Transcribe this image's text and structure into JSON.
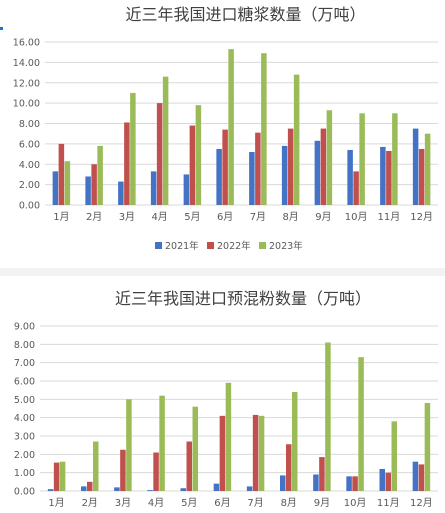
{
  "colors": {
    "s2021": "#4472c4",
    "s2022": "#c0504d",
    "s2023": "#9bbb59",
    "grid": "#d9d9d9",
    "text": "#595959"
  },
  "chart_data": [
    {
      "type": "bar",
      "title": "近三年我国进口糖浆数量（万吨）",
      "categories": [
        "1月",
        "2月",
        "3月",
        "4月",
        "5月",
        "6月",
        "7月",
        "8月",
        "9月",
        "10月",
        "11月",
        "12月"
      ],
      "yticks": [
        "0.00",
        "2.00",
        "4.00",
        "6.00",
        "8.00",
        "10.00",
        "12.00",
        "14.00",
        "16.00"
      ],
      "ylim": [
        0,
        16
      ],
      "legend_position": "bottom",
      "series": [
        {
          "name": "2021年",
          "values": [
            3.3,
            2.8,
            2.3,
            3.3,
            3.0,
            5.5,
            5.2,
            5.8,
            6.3,
            5.4,
            5.7,
            7.5
          ]
        },
        {
          "name": "2022年",
          "values": [
            6.0,
            4.0,
            8.1,
            10.0,
            7.8,
            7.4,
            7.1,
            7.5,
            7.5,
            3.3,
            5.3,
            5.5
          ]
        },
        {
          "name": "2023年",
          "values": [
            4.3,
            5.8,
            11.0,
            12.6,
            9.8,
            15.3,
            14.9,
            12.8,
            9.3,
            9.0,
            9.0,
            7.0
          ]
        }
      ]
    },
    {
      "type": "bar",
      "title": "近三年我国进口预混粉数量（万吨）",
      "categories": [
        "1月",
        "2月",
        "3月",
        "4月",
        "5月",
        "6月",
        "7月",
        "8月",
        "9月",
        "10月",
        "11月",
        "12月"
      ],
      "yticks": [
        "0.00",
        "1.00",
        "2.00",
        "3.00",
        "4.00",
        "5.00",
        "6.00",
        "7.00",
        "8.00",
        "9.00"
      ],
      "ylim": [
        0,
        9
      ],
      "series": [
        {
          "name": "2021年",
          "values": [
            0.1,
            0.25,
            0.2,
            0.05,
            0.15,
            0.4,
            0.25,
            0.85,
            0.9,
            0.8,
            1.2,
            1.6
          ]
        },
        {
          "name": "2022年",
          "values": [
            1.55,
            0.5,
            2.25,
            2.1,
            2.7,
            4.1,
            4.15,
            2.55,
            1.85,
            0.8,
            1.0,
            1.45
          ]
        },
        {
          "name": "2023年",
          "values": [
            1.6,
            2.7,
            5.0,
            5.2,
            4.6,
            5.9,
            4.1,
            5.4,
            8.1,
            7.3,
            3.8,
            4.8
          ]
        }
      ]
    }
  ]
}
